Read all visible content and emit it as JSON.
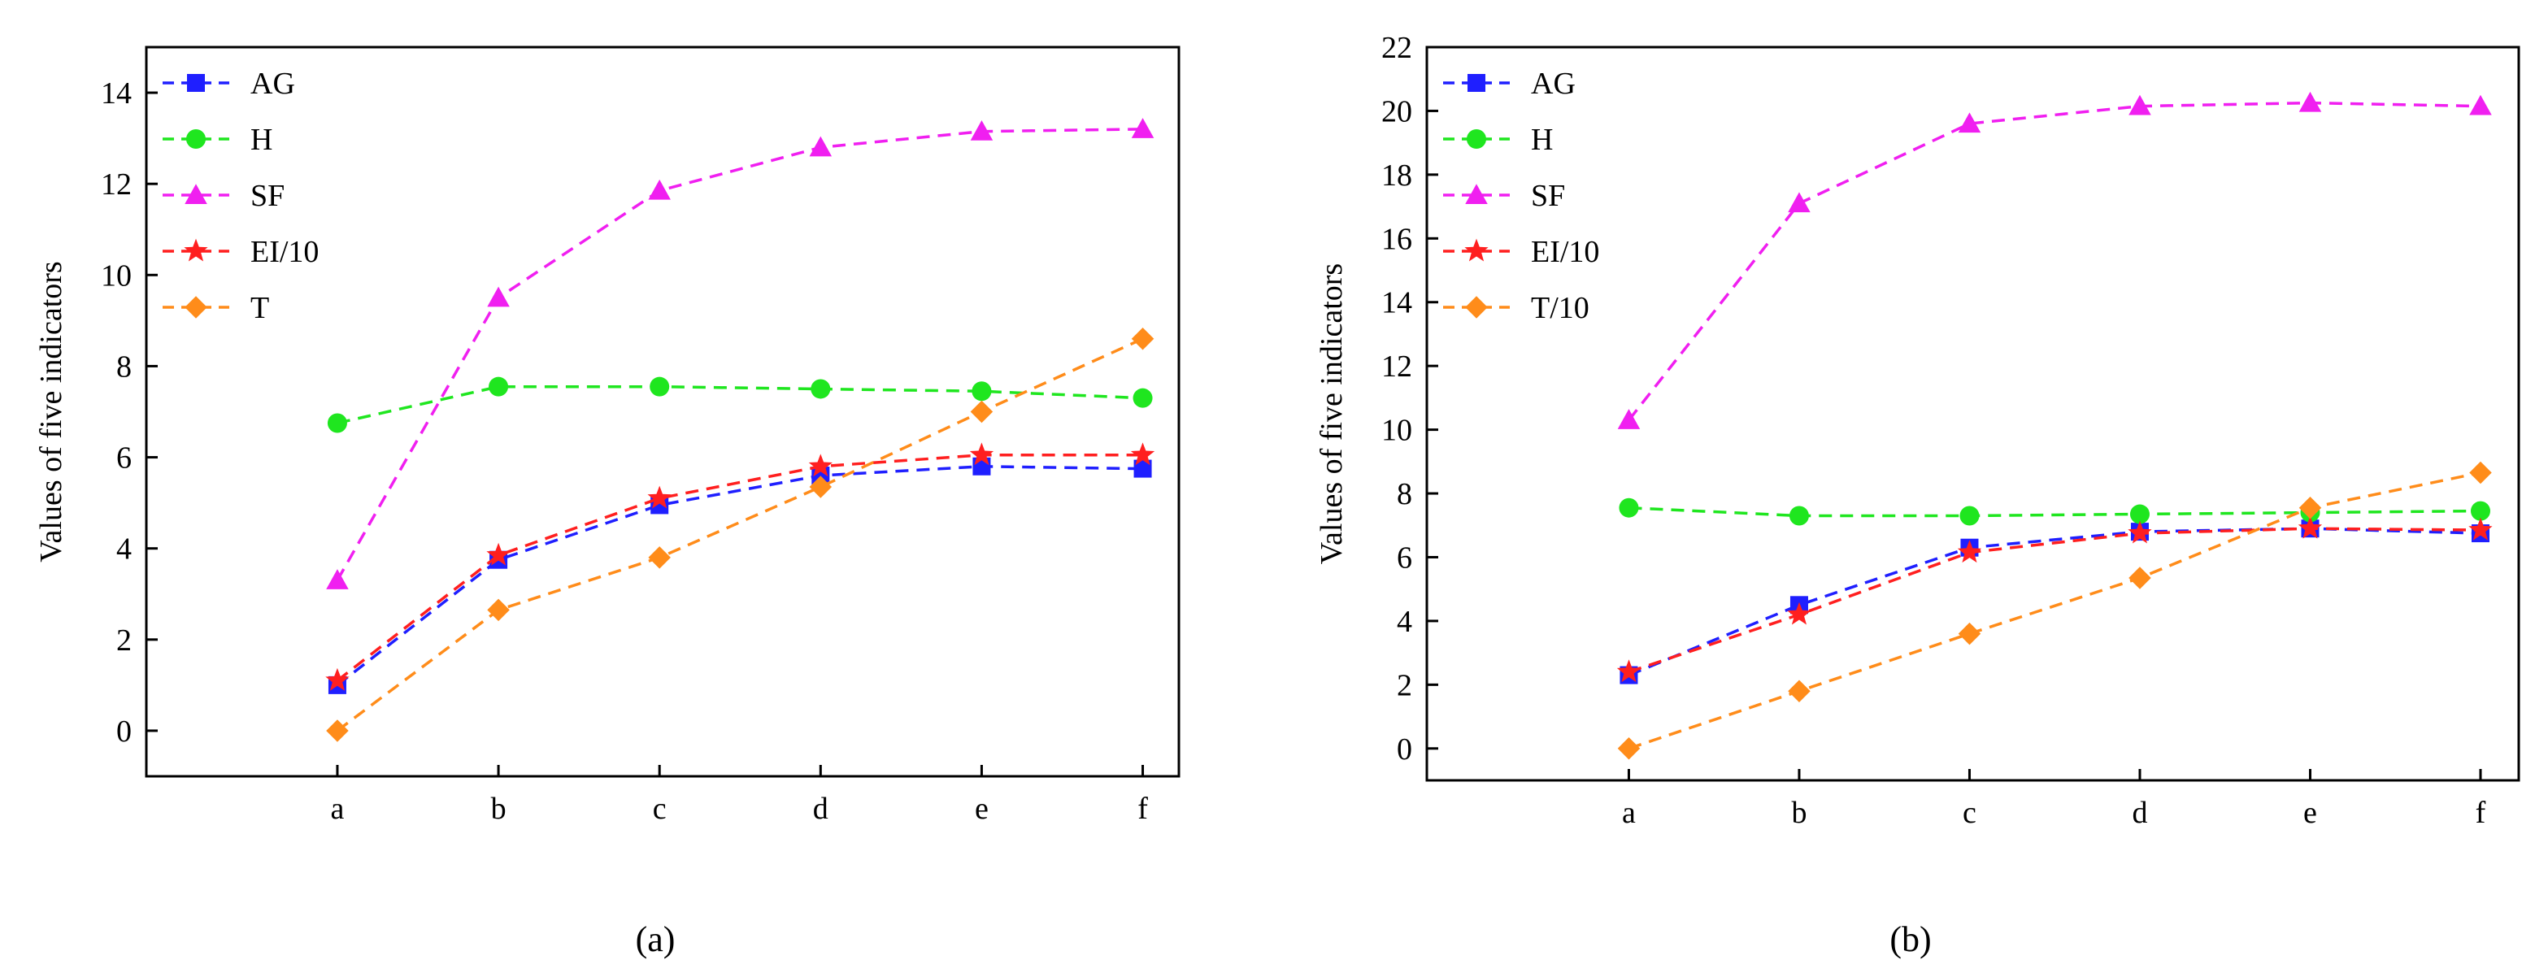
{
  "chart_data": [
    {
      "type": "line",
      "panel_label": "a",
      "xlabel": "",
      "ylabel": "Values of five indicators",
      "categories": [
        "a",
        "b",
        "c",
        "d",
        "e",
        "f"
      ],
      "ylim": [
        -1,
        15
      ],
      "yticks": [
        0,
        2,
        4,
        6,
        8,
        10,
        12,
        14
      ],
      "legend_position": "top-left",
      "series": [
        {
          "name": "AG",
          "color": "#1f1fff",
          "marker": "square",
          "values": [
            1.0,
            3.75,
            4.95,
            5.6,
            5.8,
            5.75
          ]
        },
        {
          "name": "H",
          "color": "#1fe61f",
          "marker": "circle",
          "values": [
            6.75,
            7.55,
            7.55,
            7.5,
            7.45,
            7.3
          ]
        },
        {
          "name": "SF",
          "color": "#f01ff0",
          "marker": "triangle",
          "values": [
            3.3,
            9.5,
            11.85,
            12.8,
            13.15,
            13.2
          ]
        },
        {
          "name": "EI/10",
          "color": "#ff1f1f",
          "marker": "star",
          "values": [
            1.1,
            3.85,
            5.1,
            5.8,
            6.05,
            6.05
          ]
        },
        {
          "name": "T",
          "color": "#ff8c1a",
          "marker": "diamond",
          "values": [
            0.0,
            2.65,
            3.8,
            5.35,
            7.0,
            8.6
          ]
        }
      ]
    },
    {
      "type": "line",
      "panel_label": "b",
      "xlabel": "",
      "ylabel": "Values of five indicators",
      "categories": [
        "a",
        "b",
        "c",
        "d",
        "e",
        "f"
      ],
      "ylim": [
        -1,
        22
      ],
      "yticks": [
        0,
        2,
        4,
        6,
        8,
        10,
        12,
        14,
        16,
        18,
        20,
        22
      ],
      "legend_position": "top-left",
      "series": [
        {
          "name": "AG",
          "color": "#1f1fff",
          "marker": "square",
          "values": [
            2.3,
            4.5,
            6.3,
            6.8,
            6.9,
            6.75
          ]
        },
        {
          "name": "H",
          "color": "#1fe61f",
          "marker": "circle",
          "values": [
            7.55,
            7.3,
            7.3,
            7.35,
            7.4,
            7.45
          ]
        },
        {
          "name": "SF",
          "color": "#f01ff0",
          "marker": "triangle",
          "values": [
            10.3,
            17.1,
            19.6,
            20.15,
            20.25,
            20.15
          ]
        },
        {
          "name": "EI/10",
          "color": "#ff1f1f",
          "marker": "star",
          "values": [
            2.4,
            4.2,
            6.15,
            6.75,
            6.9,
            6.85
          ]
        },
        {
          "name": "T/10",
          "color": "#ff8c1a",
          "marker": "diamond",
          "values": [
            0.0,
            1.8,
            3.6,
            5.35,
            7.55,
            8.65
          ]
        }
      ]
    }
  ],
  "panel_labels": [
    "(a)",
    "(b)"
  ]
}
